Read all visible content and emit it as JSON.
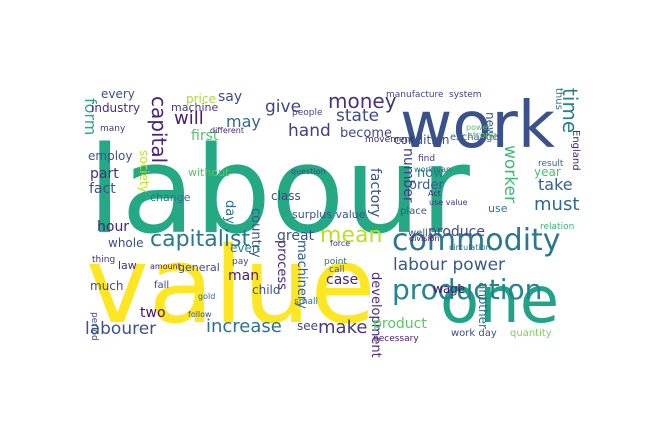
{
  "words": [
    {
      "text": "labour",
      "color": "#25a884",
      "vertical": false
    },
    {
      "text": "value",
      "color": "#fde725",
      "vertical": false
    },
    {
      "text": "work",
      "color": "#3b518b",
      "vertical": false
    },
    {
      "text": "one",
      "color": "#20a386",
      "vertical": false
    },
    {
      "text": "commodity",
      "color": "#2a788e",
      "vertical": false
    },
    {
      "text": "production",
      "color": "#25848e",
      "vertical": false
    },
    {
      "text": "capitalist",
      "color": "#2a778e",
      "vertical": false
    },
    {
      "text": "money",
      "color": "#46337e",
      "vertical": false
    },
    {
      "text": "labour power",
      "color": "#375a8c",
      "vertical": false
    },
    {
      "text": "increase",
      "color": "#2c738e",
      "vertical": false
    },
    {
      "text": "labourer",
      "color": "#3b528b",
      "vertical": false
    },
    {
      "text": "make",
      "color": "#443983",
      "vertical": false
    },
    {
      "text": "mean",
      "color": "#bddf26",
      "vertical": false
    },
    {
      "text": "hand",
      "color": "#433e85",
      "vertical": false
    },
    {
      "text": "state",
      "color": "#3e4989",
      "vertical": false
    },
    {
      "text": "give",
      "color": "#414487",
      "vertical": false
    },
    {
      "text": "will",
      "color": "#481f70",
      "vertical": false
    },
    {
      "text": "may",
      "color": "#31688e",
      "vertical": false
    },
    {
      "text": "say",
      "color": "#3e4c8a",
      "vertical": false
    },
    {
      "text": "first",
      "color": "#52c569",
      "vertical": false
    },
    {
      "text": "become",
      "color": "#3f4788",
      "vertical": false
    },
    {
      "text": "must",
      "color": "#2f6c8e",
      "vertical": false
    },
    {
      "text": "take",
      "color": "#355f8d",
      "vertical": false
    },
    {
      "text": "fact",
      "color": "#39568c",
      "vertical": false
    },
    {
      "text": "part",
      "color": "#472d7b",
      "vertical": false
    },
    {
      "text": "form",
      "color": "#25ac82",
      "vertical": true
    },
    {
      "text": "capital",
      "color": "#482576",
      "vertical": true
    },
    {
      "text": "time",
      "color": "#26828e",
      "vertical": true
    },
    {
      "text": "worker",
      "color": "#3dbc74",
      "vertical": true
    },
    {
      "text": "day",
      "color": "#2d708e",
      "vertical": true
    },
    {
      "text": "country",
      "color": "#375b8d",
      "vertical": true
    },
    {
      "text": "factory",
      "color": "#3b518b",
      "vertical": true
    },
    {
      "text": "number",
      "color": "#433e85",
      "vertical": true
    },
    {
      "text": "process",
      "color": "#482878",
      "vertical": true
    },
    {
      "text": "machinery",
      "color": "#34608d",
      "vertical": true
    },
    {
      "text": "development",
      "color": "#46327e",
      "vertical": true
    },
    {
      "text": "society",
      "color": "#c2df23",
      "vertical": true
    },
    {
      "text": "every",
      "color": "#3d4e8a",
      "vertical": false
    },
    {
      "text": "industry",
      "color": "#472f7d",
      "vertical": false
    },
    {
      "text": "price",
      "color": "#aadc32",
      "vertical": false
    },
    {
      "text": "machine",
      "color": "#453882",
      "vertical": false
    },
    {
      "text": "employ",
      "color": "#3a548c",
      "vertical": false
    },
    {
      "text": "hour",
      "color": "#482374",
      "vertical": false
    },
    {
      "text": "whole",
      "color": "#3c4f8a",
      "vertical": false
    },
    {
      "text": "change",
      "color": "#2e6f8e",
      "vertical": false
    },
    {
      "text": "without",
      "color": "#56c667",
      "vertical": false
    },
    {
      "text": "great",
      "color": "#3b528b",
      "vertical": false
    },
    {
      "text": "even",
      "color": "#26818e",
      "vertical": false
    },
    {
      "text": "man",
      "color": "#481b6d",
      "vertical": false
    },
    {
      "text": "child",
      "color": "#3a548c",
      "vertical": false
    },
    {
      "text": "two",
      "color": "#471365",
      "vertical": false
    },
    {
      "text": "see",
      "color": "#3f4889",
      "vertical": false
    },
    {
      "text": "produce",
      "color": "#3e4a89",
      "vertical": false
    },
    {
      "text": "wage",
      "color": "#471063",
      "vertical": false
    },
    {
      "text": "product",
      "color": "#5ac864",
      "vertical": false
    },
    {
      "text": "order",
      "color": "#365c8d",
      "vertical": false
    },
    {
      "text": "now",
      "color": "#29798e",
      "vertical": false
    },
    {
      "text": "condition",
      "color": "#3c4f8a",
      "vertical": false
    },
    {
      "text": "surplus value",
      "color": "#3a538b",
      "vertical": false
    },
    {
      "text": "class",
      "color": "#3e4a89",
      "vertical": false
    },
    {
      "text": "case",
      "color": "#482677",
      "vertical": false
    },
    {
      "text": "much",
      "color": "#3d4e8a",
      "vertical": false
    },
    {
      "text": "law",
      "color": "#472c7a",
      "vertical": false
    },
    {
      "text": "general",
      "color": "#3f4788",
      "vertical": false
    },
    {
      "text": "fall",
      "color": "#414487",
      "vertical": false
    },
    {
      "text": "year",
      "color": "#4ac16d",
      "vertical": false
    },
    {
      "text": "use",
      "color": "#2a768e",
      "vertical": false
    },
    {
      "text": "new",
      "color": "#38598c",
      "vertical": true
    },
    {
      "text": "another",
      "color": "#2c728e",
      "vertical": true
    },
    {
      "text": "work day",
      "color": "#3d4d8a",
      "vertical": false
    },
    {
      "text": "quantity",
      "color": "#7ad151",
      "vertical": false
    },
    {
      "text": "necessary",
      "color": "#481b6d",
      "vertical": false
    },
    {
      "text": "manufacture",
      "color": "#3f4788",
      "vertical": false
    },
    {
      "text": "system",
      "color": "#443a83",
      "vertical": false
    },
    {
      "text": "exchange",
      "color": "#34608d",
      "vertical": false
    },
    {
      "text": "movement",
      "color": "#482173",
      "vertical": false
    },
    {
      "text": "well",
      "color": "#3b518b",
      "vertical": false
    },
    {
      "text": "place",
      "color": "#39558c",
      "vertical": false
    },
    {
      "text": "division",
      "color": "#471365",
      "vertical": false
    },
    {
      "text": "circulation",
      "color": "#2e6e8e",
      "vertical": false
    },
    {
      "text": "find",
      "color": "#453882",
      "vertical": false
    },
    {
      "text": "relation",
      "color": "#35b779",
      "vertical": false
    },
    {
      "text": "result",
      "color": "#31688e",
      "vertical": false
    },
    {
      "text": "England",
      "color": "#482979",
      "vertical": true
    },
    {
      "text": "thus",
      "color": "#2b758e",
      "vertical": true
    },
    {
      "text": "people",
      "color": "#404588",
      "vertical": false
    },
    {
      "text": "different",
      "color": "#482475",
      "vertical": false
    },
    {
      "text": "question",
      "color": "#3e4989",
      "vertical": false
    },
    {
      "text": "point",
      "color": "#2f6b8e",
      "vertical": false
    },
    {
      "text": "call",
      "color": "#3b528b",
      "vertical": false
    },
    {
      "text": "force",
      "color": "#472f7d",
      "vertical": false
    },
    {
      "text": "small",
      "color": "#2c738e",
      "vertical": false
    },
    {
      "text": "pay",
      "color": "#3e4c8a",
      "vertical": false
    },
    {
      "text": "thing",
      "color": "#46327e",
      "vertical": false
    },
    {
      "text": "period",
      "color": "#3c4f8a",
      "vertical": true
    },
    {
      "text": "many",
      "color": "#443983",
      "vertical": false
    },
    {
      "text": "gold",
      "color": "#31688e",
      "vertical": false
    },
    {
      "text": "amount",
      "color": "#482374",
      "vertical": false
    },
    {
      "text": "use value",
      "color": "#453781",
      "vertical": false
    },
    {
      "text": "workman",
      "color": "#2a788e",
      "vertical": false
    },
    {
      "text": "power",
      "color": "#4ec36b",
      "vertical": false
    },
    {
      "text": "follow",
      "color": "#3b518b",
      "vertical": false
    },
    {
      "text": "Act",
      "color": "#482878",
      "vertical": false
    },
    {
      "text": "strong",
      "color": "#6ccd5a",
      "vertical": false
    },
    {
      "text": "cost",
      "color": "#7fd34e",
      "vertical": false
    }
  ]
}
